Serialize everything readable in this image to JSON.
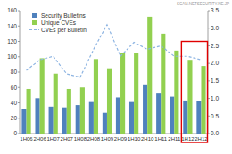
{
  "chart_data": {
    "type": "bar",
    "annotations": [
      "SCAN.NETSECURITY.NE.JP"
    ],
    "categories": [
      "1H06",
      "2H06",
      "1H07",
      "2H07",
      "1H08",
      "2H08",
      "1H09",
      "2H09",
      "1H10",
      "2H10",
      "1H11",
      "2H11",
      "1H12",
      "2H12"
    ],
    "series": [
      {
        "name": "Security Bulletins",
        "color": "#4f81bd",
        "type": "bar",
        "values": [
          32,
          46,
          35,
          34,
          37,
          41,
          27,
          47,
          41,
          64,
          52,
          48,
          43,
          42
        ]
      },
      {
        "name": "Unique CVEs",
        "color": "#92d050",
        "type": "bar",
        "values": [
          58,
          98,
          78,
          58,
          60,
          97,
          85,
          105,
          105,
          152,
          130,
          108,
          96,
          88
        ]
      },
      {
        "name": "CVEs per Bulletin",
        "color": "#8db4e2",
        "type": "line",
        "line_style": "dashed",
        "axis": "y2",
        "values": [
          1.8,
          2.1,
          2.2,
          1.7,
          1.6,
          2.4,
          3.1,
          2.2,
          2.6,
          2.4,
          2.5,
          2.2,
          2.2,
          2.1
        ]
      }
    ],
    "ylim": [
      0,
      160
    ],
    "yticks": [
      0,
      20,
      40,
      60,
      80,
      100,
      120,
      140,
      160
    ],
    "y2lim": [
      0,
      3.5
    ],
    "y2ticks": [
      {
        "value": 0,
        "label": "0.0"
      },
      0.5,
      {
        "value": 1,
        "label": "1.0"
      },
      1.5,
      {
        "value": 2,
        "label": "2.0"
      },
      2.5,
      {
        "value": 3,
        "label": "3.0"
      },
      3.5
    ],
    "grid": false,
    "legend": "top left"
  }
}
